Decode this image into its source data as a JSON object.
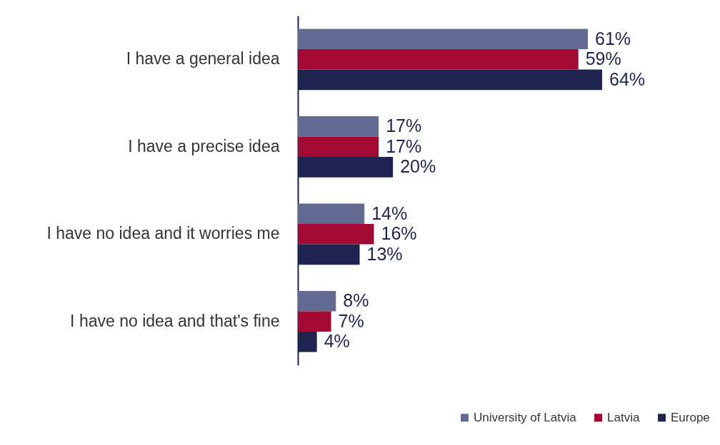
{
  "chart_data": {
    "type": "bar",
    "orientation": "horizontal",
    "categories": [
      "I have a general idea",
      "I have a precise idea",
      "I have no idea and it worries me",
      "I have no idea and that's fine"
    ],
    "series": [
      {
        "name": "University of Latvia",
        "color": "#636b93",
        "values": [
          61,
          17,
          14,
          8
        ],
        "value_labels": [
          "61%",
          "17%",
          "14%",
          "8%"
        ]
      },
      {
        "name": "Latvia",
        "color": "#a30a33",
        "values": [
          59,
          17,
          16,
          7
        ],
        "value_labels": [
          "59%",
          "17%",
          "16%",
          "7%"
        ]
      },
      {
        "name": "Europe",
        "color": "#1e2350",
        "values": [
          64,
          20,
          13,
          4
        ],
        "value_labels": [
          "64%",
          "20%",
          "13%",
          "4%"
        ]
      }
    ],
    "legend": "bottom right"
  }
}
